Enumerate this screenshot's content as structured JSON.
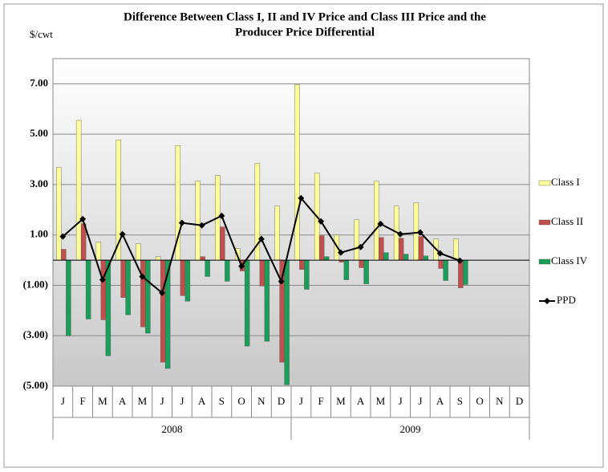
{
  "chart_data": {
    "type": "bar",
    "title": [
      "Difference Between Class I, II and IV Price and Class III Price and the",
      "Producer Price Differential"
    ],
    "y_label": "$/cwt",
    "categories": [
      "J",
      "F",
      "M",
      "A",
      "M",
      "J",
      "J",
      "A",
      "S",
      "O",
      "N",
      "D",
      "J",
      "F",
      "M",
      "A",
      "M",
      "J",
      "J",
      "A",
      "S",
      "O",
      "N",
      "D"
    ],
    "years": [
      "2008",
      "2009"
    ],
    "ylim": [
      -5,
      8
    ],
    "yticks": [
      {
        "value": -5,
        "label": "(5.00)"
      },
      {
        "value": -3,
        "label": "(3.00)"
      },
      {
        "value": -1,
        "label": "(1.00)"
      },
      {
        "value": 1,
        "label": "1.00"
      },
      {
        "value": 3,
        "label": "3.00"
      },
      {
        "value": 5,
        "label": "5.00"
      },
      {
        "value": 7,
        "label": "7.00"
      }
    ],
    "negative_tick_color": "#ff0000",
    "grid": true,
    "legend": "right",
    "series": [
      {
        "name": "Class I",
        "type": "bar",
        "color": "#ffff99",
        "values": [
          3.68,
          5.55,
          0.72,
          4.77,
          0.65,
          0.14,
          4.55,
          3.14,
          3.36,
          0.46,
          3.84,
          2.15,
          6.97,
          3.45,
          1.0,
          1.6,
          3.13,
          2.15,
          2.28,
          0.84,
          0.84,
          null,
          null,
          null
        ]
      },
      {
        "name": "Class II",
        "type": "bar",
        "color": "#c0504d",
        "values": [
          0.43,
          1.45,
          -2.37,
          -1.48,
          -2.65,
          -4.05,
          -1.41,
          0.14,
          1.32,
          -0.43,
          -1.03,
          -4.05,
          -0.37,
          0.97,
          -0.08,
          -0.3,
          0.9,
          0.87,
          0.94,
          -0.33,
          -1.1,
          null,
          null,
          null
        ]
      },
      {
        "name": "Class IV",
        "type": "bar",
        "color": "#1a9e5a",
        "values": [
          -3.0,
          -2.34,
          -3.8,
          -2.17,
          -2.9,
          -4.3,
          -1.63,
          -0.65,
          -0.84,
          -3.41,
          -3.22,
          -4.95,
          -1.16,
          0.14,
          -0.78,
          -0.94,
          0.3,
          0.24,
          0.17,
          -0.81,
          -0.97,
          null,
          null,
          null
        ]
      },
      {
        "name": "PPD",
        "type": "line",
        "color": "#000000",
        "values": [
          0.94,
          1.63,
          -0.78,
          1.03,
          -0.65,
          -1.3,
          1.48,
          1.38,
          1.76,
          -0.24,
          0.84,
          -0.84,
          2.46,
          1.54,
          0.3,
          0.52,
          1.44,
          1.03,
          1.1,
          0.27,
          -0.02,
          null,
          null,
          null
        ]
      }
    ]
  }
}
